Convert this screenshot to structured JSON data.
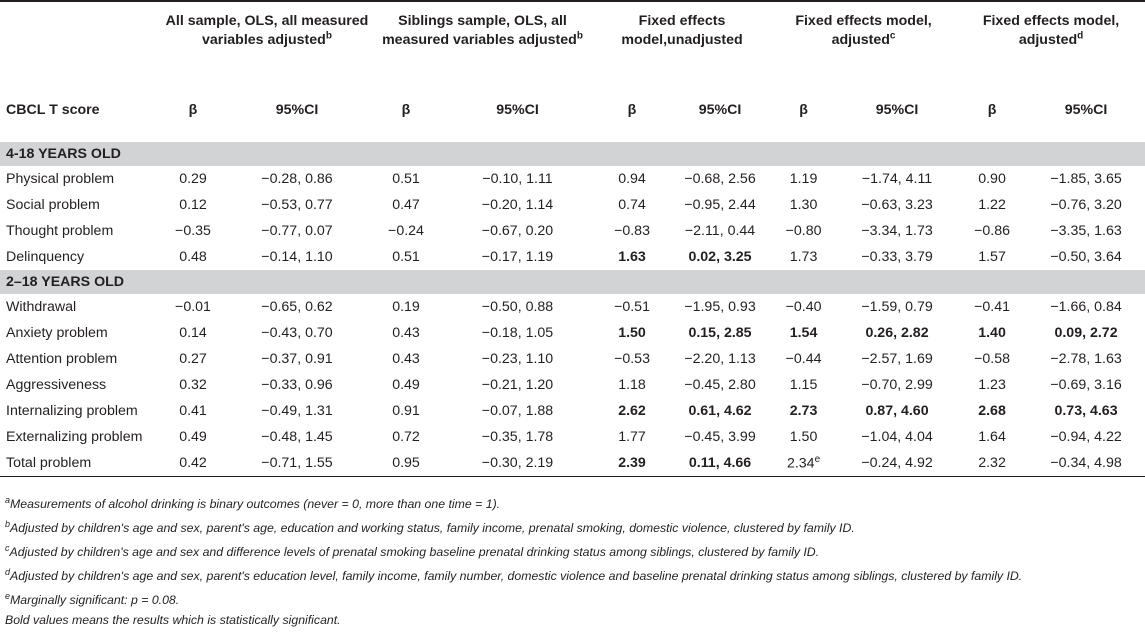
{
  "header": {
    "groups": [
      {
        "label": "All sample, OLS, all measured variables adjusted",
        "sup": "b"
      },
      {
        "label": "Siblings sample, OLS, all measured variables adjusted",
        "sup": "b"
      },
      {
        "label": "Fixed effects model,unadjusted",
        "sup": ""
      },
      {
        "label": "Fixed effects model, adjusted",
        "sup": "c"
      },
      {
        "label": "Fixed effects model, adjusted",
        "sup": "d"
      }
    ],
    "row_label": "CBCL T score",
    "beta": "β",
    "ci": "95%CI"
  },
  "sections": [
    {
      "title": "4-18 YEARS OLD",
      "rows": [
        {
          "label": "Physical problem",
          "cells": [
            "0.29",
            "−0.28, 0.86",
            "0.51",
            "−0.10, 1.11",
            "0.94",
            "−0.68, 2.56",
            "1.19",
            "−1.74, 4.11",
            "0.90",
            "−1.85, 3.65"
          ]
        },
        {
          "label": "Social problem",
          "cells": [
            "0.12",
            "−0.53, 0.77",
            "0.47",
            "−0.20, 1.14",
            "0.74",
            "−0.95, 2.44",
            "1.30",
            "−0.63, 3.23",
            "1.22",
            "−0.76, 3.20"
          ]
        },
        {
          "label": "Thought problem",
          "cells": [
            "−0.35",
            "−0.77, 0.07",
            "−0.24",
            "−0.67, 0.20",
            "−0.83",
            "−2.11, 0.44",
            "−0.80",
            "−3.34, 1.73",
            "−0.86",
            "−3.35, 1.63"
          ]
        },
        {
          "label": "Delinquency",
          "cells": [
            "0.48",
            "−0.14, 1.10",
            "0.51",
            "−0.17, 1.19",
            "1.63",
            "0.02, 3.25",
            "1.73",
            "−0.33, 3.79",
            "1.57",
            "−0.50, 3.64"
          ]
        }
      ]
    },
    {
      "title": "2–18 YEARS OLD",
      "rows": [
        {
          "label": "Withdrawal",
          "cells": [
            "−0.01",
            "−0.65, 0.62",
            "0.19",
            "−0.50, 0.88",
            "−0.51",
            "−1.95, 0.93",
            "−0.40",
            "−1.59, 0.79",
            "−0.41",
            "−1.66, 0.84"
          ]
        },
        {
          "label": "Anxiety problem",
          "cells": [
            "0.14",
            "−0.43, 0.70",
            "0.43",
            "−0.18, 1.05",
            "1.50",
            "0.15, 2.85",
            "1.54",
            "0.26, 2.82",
            "1.40",
            "0.09, 2.72"
          ]
        },
        {
          "label": "Attention problem",
          "cells": [
            "0.27",
            "−0.37, 0.91",
            "0.43",
            "−0.23, 1.10",
            "−0.53",
            "−2.20, 1.13",
            "−0.44",
            "−2.57, 1.69",
            "−0.58",
            "−2.78, 1.63"
          ]
        },
        {
          "label": "Aggressiveness",
          "cells": [
            "0.32",
            "−0.33, 0.96",
            "0.49",
            "−0.21, 1.20",
            "1.18",
            "−0.45, 2.80",
            "1.15",
            "−0.70, 2.99",
            "1.23",
            "−0.69, 3.16"
          ]
        },
        {
          "label": "Internalizing problem",
          "cells": [
            "0.41",
            "−0.49, 1.31",
            "0.91",
            "−0.07, 1.88",
            "2.62",
            "0.61, 4.62",
            "2.73",
            "0.87, 4.60",
            "2.68",
            "0.73, 4.63"
          ]
        },
        {
          "label": "Externalizing problem",
          "cells": [
            "0.49",
            "−0.48, 1.45",
            "0.72",
            "−0.35, 1.78",
            "1.77",
            "−0.45, 3.99",
            "1.50",
            "−1.04, 4.04",
            "1.64",
            "−0.94, 4.22"
          ]
        },
        {
          "label": "Total problem",
          "cells": [
            "0.42",
            "−0.71, 1.55",
            "0.95",
            "−0.30, 2.19",
            "2.39",
            "0.11, 4.66",
            "2.34",
            "−0.24, 4.92",
            "2.32",
            "−0.34, 4.98"
          ],
          "cell7_sup": "e"
        }
      ]
    }
  ],
  "footnotes": [
    {
      "mark": "a",
      "text": "Measurements of alcohol drinking is binary outcomes (never = 0, more than one time = 1)."
    },
    {
      "mark": "b",
      "text": "Adjusted by children's age and sex, parent's age, education and working status, family income, prenatal smoking, domestic violence, clustered by family ID."
    },
    {
      "mark": "c",
      "text": "Adjusted by children's age and sex and difference levels of prenatal smoking baseline prenatal drinking status among siblings, clustered by family ID."
    },
    {
      "mark": "d",
      "text": "Adjusted by children's age and sex, parent's education level, family income, family number, domestic violence and baseline prenatal drinking status among siblings, clustered by family ID."
    },
    {
      "mark": "e",
      "text": "Marginally significant: p = 0.08."
    },
    {
      "mark": "",
      "text": "Bold values means the results which is statistically significant."
    }
  ]
}
